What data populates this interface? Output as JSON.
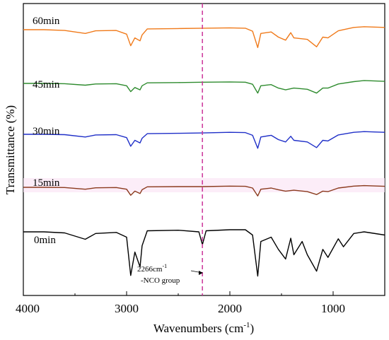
{
  "chart_data": {
    "type": "line",
    "title": "",
    "xlabel": "Wavenumbers (cm",
    "xlabel_sup": "-1",
    "xlabel_end": ")",
    "ylabel": "Transmittance (%)",
    "xlim": [
      4000,
      500
    ],
    "x_reversed": true,
    "xticks": [
      "4000",
      "3000",
      "2000",
      "1000"
    ],
    "xtick_values": [
      4000,
      3000,
      2000,
      1000
    ],
    "y_ticks_shown": false,
    "grid": false,
    "legend": "inline labels at left of each trace",
    "series": [
      {
        "name": "0min",
        "color": "#000000",
        "points": [
          [
            4000,
            0.88
          ],
          [
            3800,
            0.88
          ],
          [
            3600,
            0.86
          ],
          [
            3400,
            0.74
          ],
          [
            3300,
            0.85
          ],
          [
            3100,
            0.87
          ],
          [
            3000,
            0.78
          ],
          [
            2960,
            0.06
          ],
          [
            2920,
            0.5
          ],
          [
            2870,
            0.22
          ],
          [
            2850,
            0.62
          ],
          [
            2800,
            0.9
          ],
          [
            2500,
            0.91
          ],
          [
            2300,
            0.88
          ],
          [
            2266,
            0.64
          ],
          [
            2230,
            0.9
          ],
          [
            2000,
            0.92
          ],
          [
            1850,
            0.92
          ],
          [
            1780,
            0.82
          ],
          [
            1730,
            0.05
          ],
          [
            1700,
            0.7
          ],
          [
            1600,
            0.78
          ],
          [
            1530,
            0.55
          ],
          [
            1460,
            0.37
          ],
          [
            1410,
            0.76
          ],
          [
            1380,
            0.45
          ],
          [
            1300,
            0.7
          ],
          [
            1250,
            0.45
          ],
          [
            1160,
            0.14
          ],
          [
            1100,
            0.55
          ],
          [
            1050,
            0.4
          ],
          [
            950,
            0.75
          ],
          [
            900,
            0.6
          ],
          [
            800,
            0.85
          ],
          [
            700,
            0.88
          ],
          [
            500,
            0.82
          ]
        ]
      },
      {
        "name": "15min",
        "color": "#8b3a1e",
        "points": [
          [
            4000,
            0.88
          ],
          [
            3800,
            0.88
          ],
          [
            3600,
            0.87
          ],
          [
            3400,
            0.8
          ],
          [
            3300,
            0.86
          ],
          [
            3100,
            0.87
          ],
          [
            3000,
            0.8
          ],
          [
            2960,
            0.55
          ],
          [
            2920,
            0.72
          ],
          [
            2870,
            0.62
          ],
          [
            2850,
            0.78
          ],
          [
            2800,
            0.9
          ],
          [
            2500,
            0.91
          ],
          [
            2266,
            0.91
          ],
          [
            2000,
            0.93
          ],
          [
            1850,
            0.92
          ],
          [
            1780,
            0.85
          ],
          [
            1730,
            0.52
          ],
          [
            1700,
            0.8
          ],
          [
            1600,
            0.85
          ],
          [
            1530,
            0.78
          ],
          [
            1460,
            0.72
          ],
          [
            1380,
            0.76
          ],
          [
            1250,
            0.7
          ],
          [
            1160,
            0.58
          ],
          [
            1100,
            0.72
          ],
          [
            1050,
            0.7
          ],
          [
            950,
            0.85
          ],
          [
            800,
            0.93
          ],
          [
            700,
            0.95
          ],
          [
            500,
            0.92
          ]
        ]
      },
      {
        "name": "30min",
        "color": "#1f2fc8",
        "points": [
          [
            4000,
            0.88
          ],
          [
            3800,
            0.88
          ],
          [
            3600,
            0.87
          ],
          [
            3400,
            0.8
          ],
          [
            3300,
            0.86
          ],
          [
            3100,
            0.87
          ],
          [
            3000,
            0.78
          ],
          [
            2960,
            0.52
          ],
          [
            2920,
            0.7
          ],
          [
            2870,
            0.62
          ],
          [
            2850,
            0.76
          ],
          [
            2800,
            0.9
          ],
          [
            2500,
            0.91
          ],
          [
            2266,
            0.92
          ],
          [
            2000,
            0.94
          ],
          [
            1850,
            0.93
          ],
          [
            1780,
            0.85
          ],
          [
            1730,
            0.46
          ],
          [
            1700,
            0.8
          ],
          [
            1600,
            0.85
          ],
          [
            1530,
            0.72
          ],
          [
            1460,
            0.65
          ],
          [
            1410,
            0.82
          ],
          [
            1380,
            0.7
          ],
          [
            1250,
            0.65
          ],
          [
            1160,
            0.48
          ],
          [
            1100,
            0.7
          ],
          [
            1050,
            0.68
          ],
          [
            950,
            0.86
          ],
          [
            800,
            0.94
          ],
          [
            700,
            0.96
          ],
          [
            500,
            0.94
          ]
        ]
      },
      {
        "name": "45min",
        "color": "#2e8b2e",
        "points": [
          [
            4000,
            0.88
          ],
          [
            3800,
            0.88
          ],
          [
            3600,
            0.87
          ],
          [
            3400,
            0.82
          ],
          [
            3300,
            0.86
          ],
          [
            3100,
            0.87
          ],
          [
            3000,
            0.8
          ],
          [
            2960,
            0.6
          ],
          [
            2920,
            0.74
          ],
          [
            2870,
            0.66
          ],
          [
            2850,
            0.8
          ],
          [
            2800,
            0.9
          ],
          [
            2500,
            0.91
          ],
          [
            2266,
            0.92
          ],
          [
            2000,
            0.93
          ],
          [
            1850,
            0.92
          ],
          [
            1780,
            0.85
          ],
          [
            1730,
            0.55
          ],
          [
            1700,
            0.8
          ],
          [
            1600,
            0.84
          ],
          [
            1530,
            0.72
          ],
          [
            1460,
            0.66
          ],
          [
            1380,
            0.72
          ],
          [
            1250,
            0.68
          ],
          [
            1160,
            0.55
          ],
          [
            1100,
            0.72
          ],
          [
            1050,
            0.72
          ],
          [
            950,
            0.86
          ],
          [
            800,
            0.94
          ],
          [
            700,
            0.98
          ],
          [
            500,
            0.95
          ]
        ]
      },
      {
        "name": "60min",
        "color": "#f07a1a",
        "points": [
          [
            4000,
            0.88
          ],
          [
            3800,
            0.88
          ],
          [
            3600,
            0.86
          ],
          [
            3400,
            0.78
          ],
          [
            3300,
            0.85
          ],
          [
            3100,
            0.86
          ],
          [
            3000,
            0.76
          ],
          [
            2960,
            0.45
          ],
          [
            2920,
            0.66
          ],
          [
            2870,
            0.58
          ],
          [
            2850,
            0.74
          ],
          [
            2800,
            0.9
          ],
          [
            2500,
            0.91
          ],
          [
            2266,
            0.92
          ],
          [
            2000,
            0.93
          ],
          [
            1850,
            0.92
          ],
          [
            1780,
            0.84
          ],
          [
            1730,
            0.4
          ],
          [
            1700,
            0.78
          ],
          [
            1600,
            0.82
          ],
          [
            1530,
            0.68
          ],
          [
            1460,
            0.6
          ],
          [
            1410,
            0.8
          ],
          [
            1380,
            0.66
          ],
          [
            1250,
            0.62
          ],
          [
            1160,
            0.42
          ],
          [
            1100,
            0.68
          ],
          [
            1050,
            0.66
          ],
          [
            950,
            0.85
          ],
          [
            800,
            0.94
          ],
          [
            700,
            0.96
          ],
          [
            500,
            0.94
          ]
        ]
      }
    ],
    "reference_line": {
      "x": 2266,
      "color": "#cc3399",
      "style": "dashed"
    },
    "annotation": {
      "line1": "2266cm",
      "line1_sup": "-1",
      "line2": "-NCO group",
      "points_to_x": 2266
    }
  }
}
